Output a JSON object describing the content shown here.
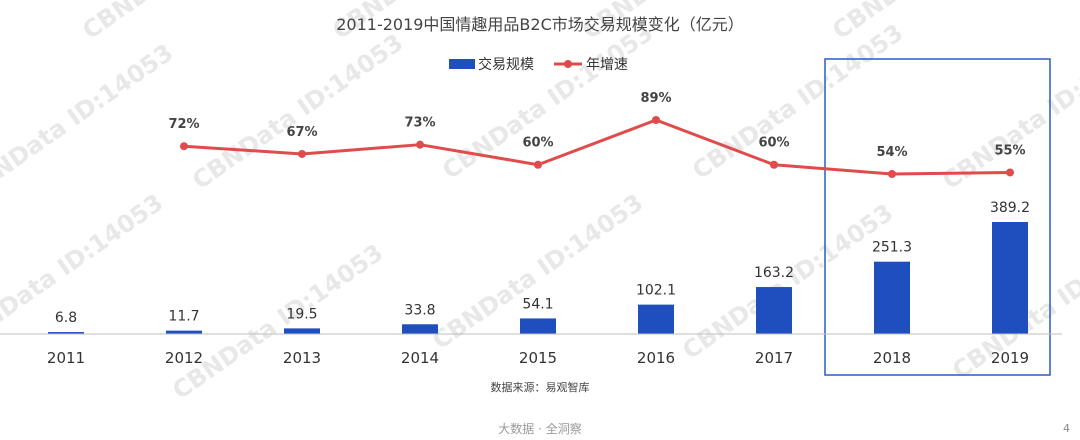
{
  "chart_data": {
    "type": "bar",
    "title": "2011-2019中国情趣用品B2C市场交易规模变化（亿元）",
    "categories": [
      "2011",
      "2012",
      "2013",
      "2014",
      "2015",
      "2016",
      "2017",
      "2018",
      "2019"
    ],
    "series": [
      {
        "name": "交易规模",
        "type": "bar",
        "color": "#1f4fbf",
        "values": [
          6.8,
          11.7,
          19.5,
          33.8,
          54.1,
          102.1,
          163.2,
          251.3,
          389.2
        ],
        "labels": [
          "6.8",
          "11.7",
          "19.5",
          "33.8",
          "54.1",
          "102.1",
          "163.2",
          "251.3",
          "389.2"
        ]
      },
      {
        "name": "年增速",
        "type": "line",
        "color": "#e04b4b",
        "values": [
          null,
          72,
          67,
          73,
          60,
          89,
          60,
          54,
          55
        ],
        "labels": [
          "",
          "72%",
          "67%",
          "73%",
          "60%",
          "89%",
          "60%",
          "54%",
          "55%"
        ]
      }
    ],
    "legend_position": "top-center",
    "grid": false,
    "highlight_categories": [
      "2018",
      "2019"
    ],
    "highlight_color": "#2a5cc7"
  },
  "source": "数据来源：易观智库",
  "footer": "大数据 · 全洞察",
  "page_number": "4",
  "watermark_text": "CBNData ID:14053"
}
